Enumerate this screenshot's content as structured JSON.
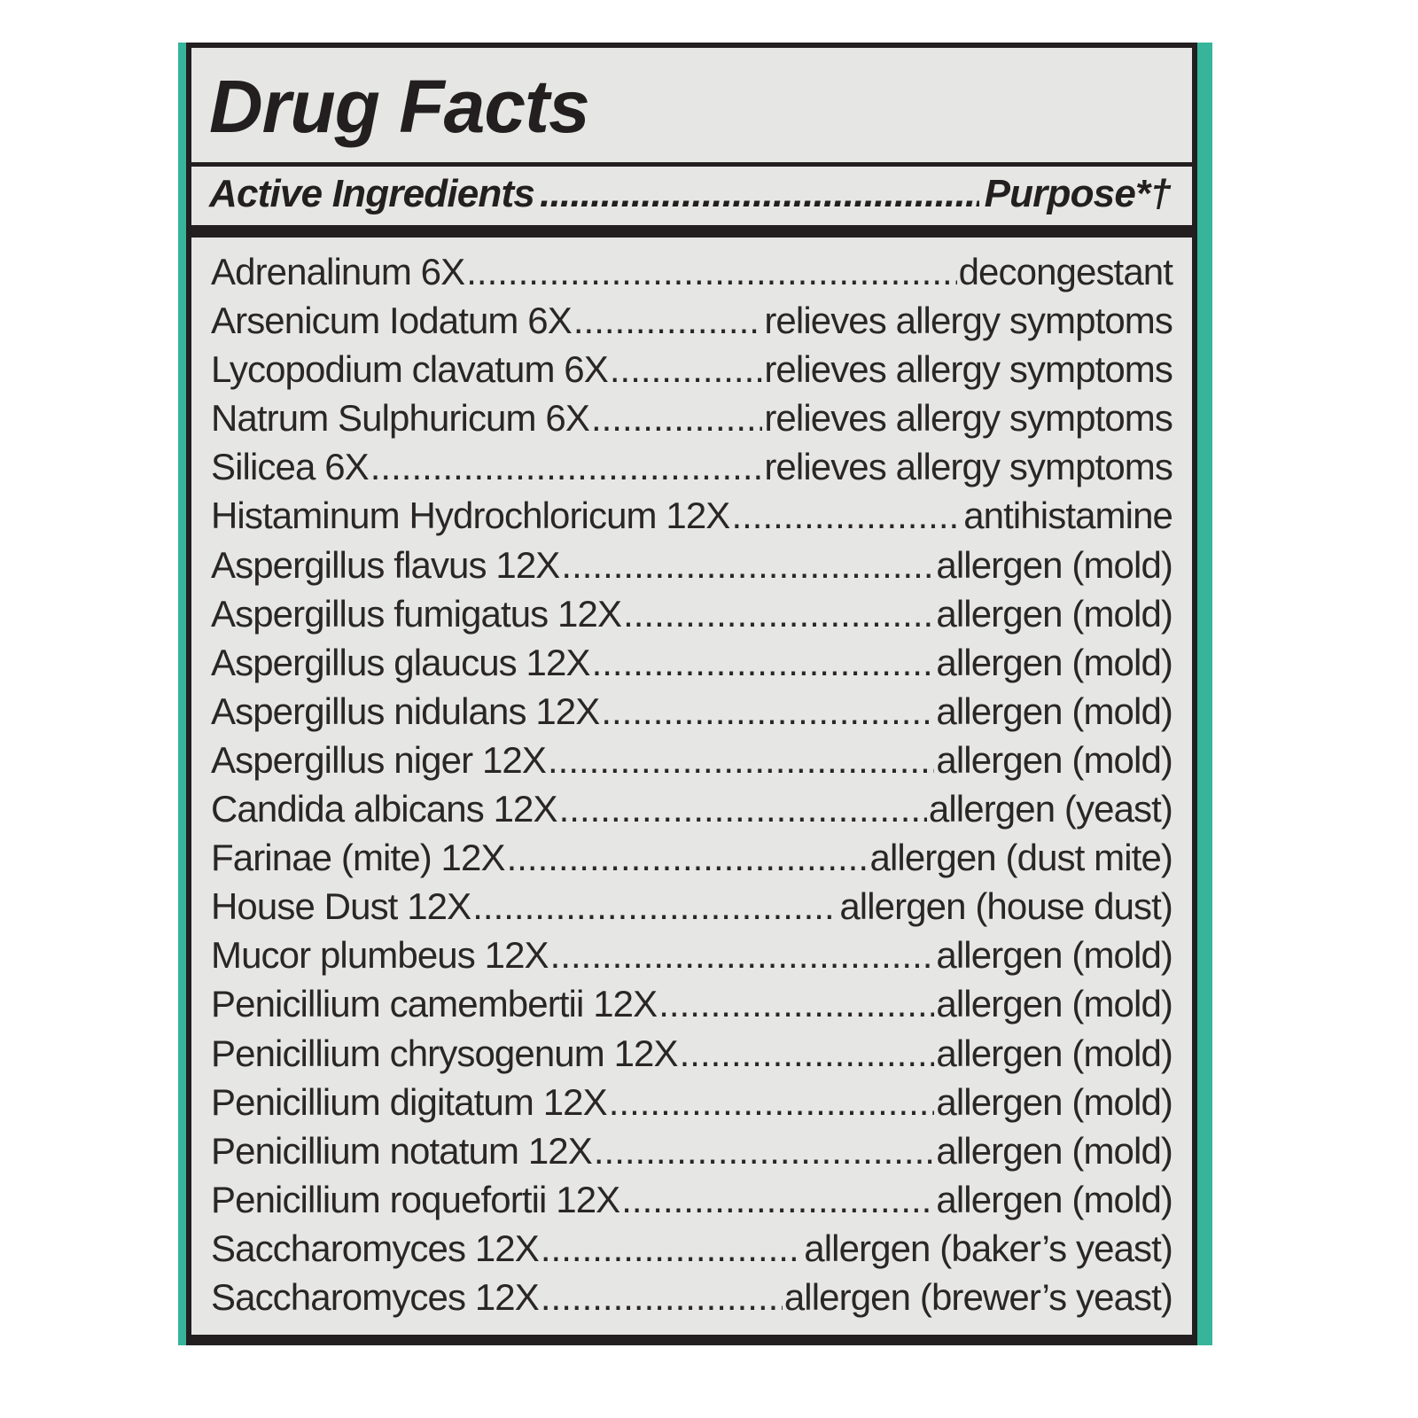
{
  "title": "Drug Facts",
  "header": {
    "left": "Active Ingredients",
    "right": "Purpose*†"
  },
  "colors": {
    "accent": "#36b59b",
    "border": "#231f20",
    "background": "#e6e7e4"
  },
  "ingredients": [
    {
      "name": "Adrenalinum 6X",
      "purpose": "decongestant"
    },
    {
      "name": "Arsenicum Iodatum 6X",
      "purpose": "relieves allergy symptoms"
    },
    {
      "name": "Lycopodium clavatum 6X",
      "purpose": "relieves allergy symptoms"
    },
    {
      "name": "Natrum Sulphuricum 6X",
      "purpose": "relieves allergy symptoms"
    },
    {
      "name": "Silicea 6X",
      "purpose": "relieves allergy symptoms"
    },
    {
      "name": "Histaminum Hydrochloricum 12X",
      "purpose": "antihistamine"
    },
    {
      "name": "Aspergillus flavus 12X",
      "purpose": "allergen (mold)"
    },
    {
      "name": "Aspergillus fumigatus 12X",
      "purpose": "allergen (mold)"
    },
    {
      "name": "Aspergillus glaucus 12X",
      "purpose": "allergen (mold)"
    },
    {
      "name": "Aspergillus nidulans 12X",
      "purpose": "allergen (mold)"
    },
    {
      "name": "Aspergillus niger 12X",
      "purpose": "allergen (mold)"
    },
    {
      "name": "Candida albicans 12X",
      "purpose": "allergen (yeast)"
    },
    {
      "name": "Farinae (mite) 12X",
      "purpose": "allergen (dust mite)"
    },
    {
      "name": "House Dust 12X",
      "purpose": "allergen (house dust)"
    },
    {
      "name": "Mucor plumbeus 12X",
      "purpose": "allergen (mold)"
    },
    {
      "name": "Penicillium camembertii 12X",
      "purpose": "allergen (mold)"
    },
    {
      "name": "Penicillium chrysogenum 12X",
      "purpose": "allergen (mold)"
    },
    {
      "name": "Penicillium digitatum 12X",
      "purpose": "allergen (mold)"
    },
    {
      "name": "Penicillium notatum 12X",
      "purpose": "allergen (mold)"
    },
    {
      "name": "Penicillium roquefortii 12X",
      "purpose": "allergen (mold)"
    },
    {
      "name": "Saccharomyces 12X",
      "purpose": "allergen (baker’s yeast)"
    },
    {
      "name": "Saccharomyces 12X",
      "purpose": "allergen (brewer’s yeast)"
    }
  ]
}
